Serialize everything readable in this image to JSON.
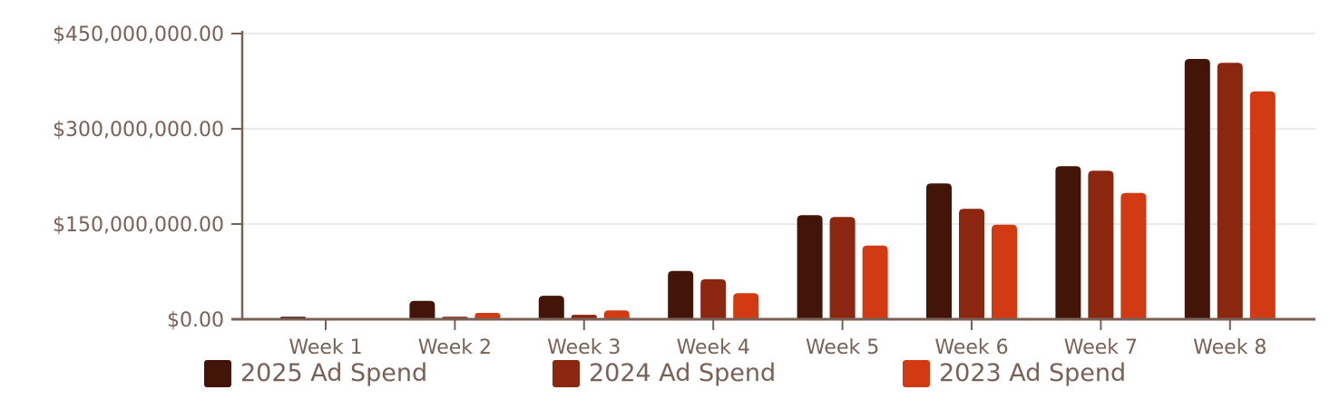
{
  "chart_data": {
    "type": "bar",
    "categories": [
      "Week 1",
      "Week 2",
      "Week 3",
      "Week 4",
      "Week 5",
      "Week 6",
      "Week 7",
      "Week 8"
    ],
    "series": [
      {
        "name": "2025 Ad Spend",
        "color": "#431509",
        "values": [
          4000000,
          29000000,
          37000000,
          76000000,
          164000000,
          214000000,
          241000000,
          410000000
        ]
      },
      {
        "name": "2024 Ad Spend",
        "color": "#8b2610",
        "values": [
          500000,
          4000000,
          7000000,
          63000000,
          161000000,
          174000000,
          234000000,
          404000000
        ]
      },
      {
        "name": "2023 Ad Spend",
        "color": "#d23a14",
        "values": [
          1200000,
          10000000,
          14000000,
          41000000,
          116000000,
          149000000,
          199000000,
          359000000
        ]
      }
    ],
    "yticks": [
      0,
      150000000,
      300000000,
      450000000
    ],
    "ytick_labels": [
      "$0.00",
      "$150,000,000.00",
      "$300,000,000.00",
      "$450,000,000.00"
    ],
    "ylim": [
      0,
      450000000
    ],
    "grid": true,
    "legend": "bottom",
    "title": "",
    "xlabel": "",
    "ylabel": ""
  }
}
